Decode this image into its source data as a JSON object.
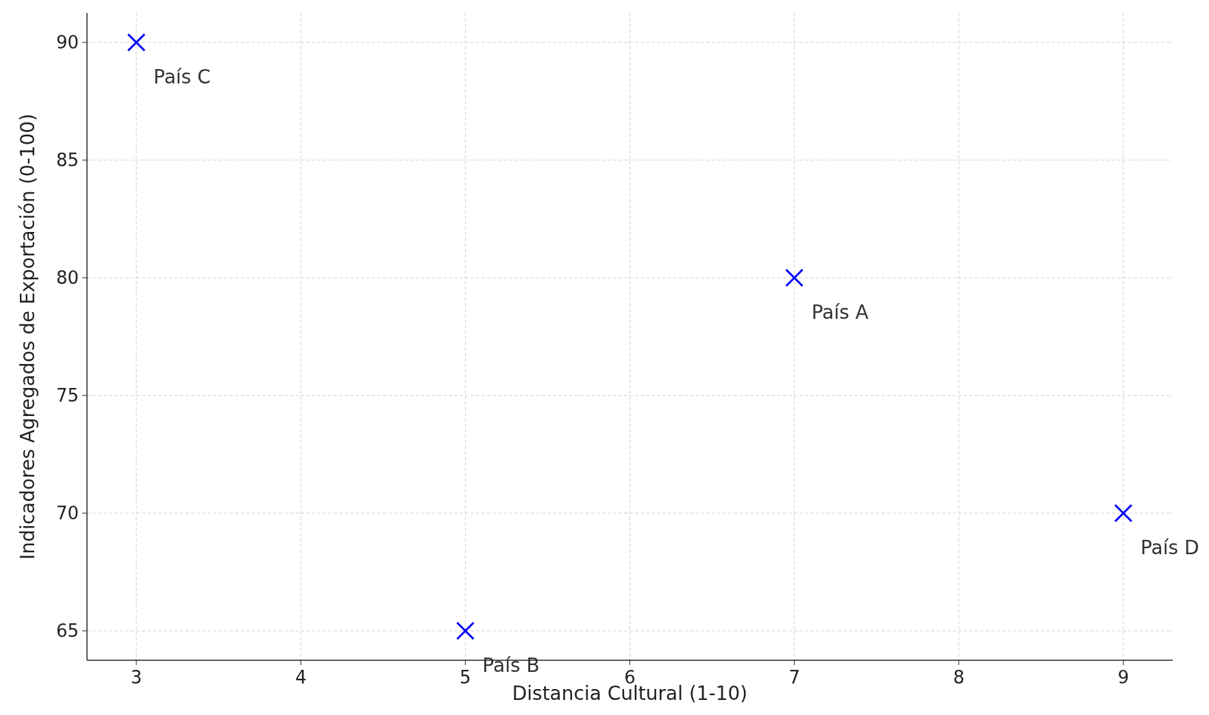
{
  "chart_data": {
    "type": "scatter",
    "xlabel": "Distancia Cultural (1-10)",
    "ylabel": "Indicadores Agregados de Exportación (0-100)",
    "x": [
      7,
      5,
      3,
      9
    ],
    "series": [
      {
        "color": "#0000ff",
        "values": [
          80,
          65,
          90,
          70
        ]
      }
    ],
    "marker": "cross",
    "grid": true,
    "xlim": [
      2.7,
      9.3
    ],
    "xticks": [
      3,
      4,
      5,
      6,
      7,
      8,
      9
    ],
    "ylim": [
      63.75,
      91.25
    ],
    "yticks": [
      65,
      70,
      75,
      80,
      85,
      90
    ],
    "annotations": [
      {
        "text": "País A",
        "x": 7,
        "y": 80
      },
      {
        "text": "País B",
        "x": 5,
        "y": 65
      },
      {
        "text": "País C",
        "x": 3,
        "y": 90
      },
      {
        "text": "País D",
        "x": 9,
        "y": 70
      }
    ]
  }
}
